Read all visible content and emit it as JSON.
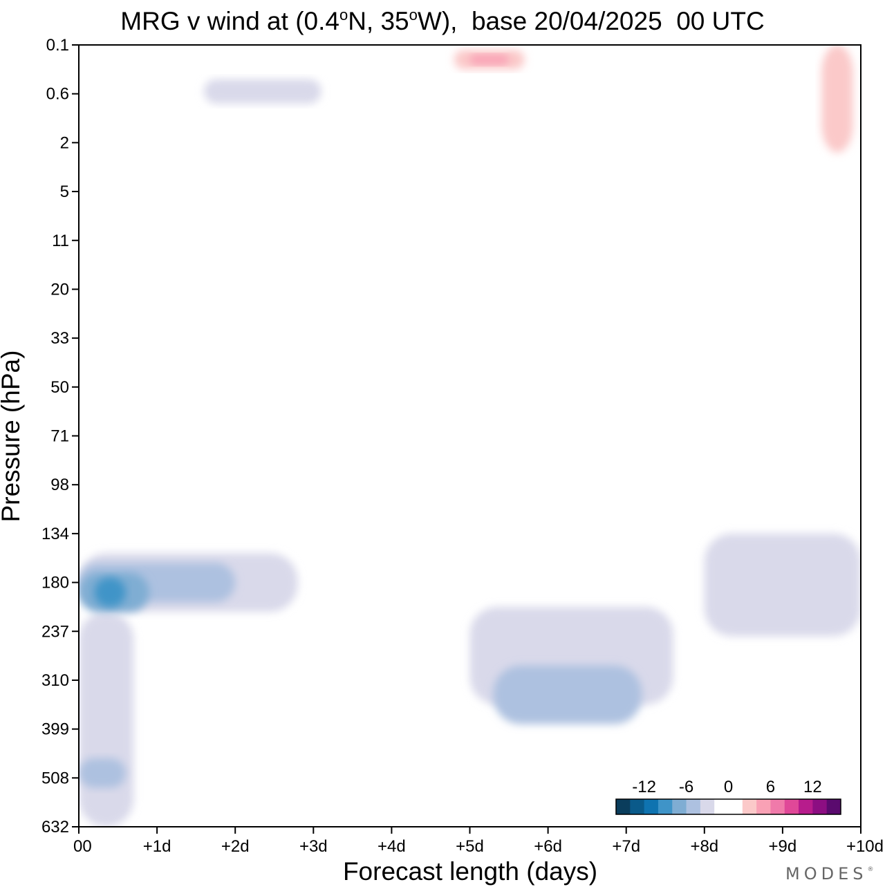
{
  "title": {
    "prefix": "MRG v wind at (0.4",
    "lat_suffix": "N, 35",
    "lon_suffix": "W),  base 20/04/2025  00 UTC",
    "degree": "o"
  },
  "logo": {
    "text": "MODES",
    "mark": "®"
  },
  "chart_data": {
    "type": "heatmap",
    "title": "MRG v wind at (0.4°N, 35°W),  base 20/04/2025  00 UTC",
    "xlabel": "Forecast length (days)",
    "ylabel": "Pressure (hPa)",
    "x_ticks": [
      {
        "value": 0,
        "label": "00"
      },
      {
        "value": 1,
        "label": "+1d"
      },
      {
        "value": 2,
        "label": "+2d"
      },
      {
        "value": 3,
        "label": "+3d"
      },
      {
        "value": 4,
        "label": "+4d"
      },
      {
        "value": 5,
        "label": "+5d"
      },
      {
        "value": 6,
        "label": "+6d"
      },
      {
        "value": 7,
        "label": "+7d"
      },
      {
        "value": 8,
        "label": "+8d"
      },
      {
        "value": 9,
        "label": "+9d"
      },
      {
        "value": 10,
        "label": "+10d"
      }
    ],
    "xlim": [
      0,
      10
    ],
    "y_ticks": [
      "0.1",
      "0.6",
      "2",
      "5",
      "11",
      "20",
      "33",
      "50",
      "71",
      "98",
      "134",
      "180",
      "237",
      "310",
      "399",
      "508",
      "632"
    ],
    "ylim": [
      "0.1",
      "632"
    ],
    "y_axis_inverted": true,
    "colorbar": {
      "tick_labels": [
        {
          "value": -12,
          "label": "-12"
        },
        {
          "value": -6,
          "label": "-6"
        },
        {
          "value": 0,
          "label": "0"
        },
        {
          "value": 6,
          "label": "6"
        },
        {
          "value": 12,
          "label": "12"
        }
      ],
      "levels": [
        -16,
        -14,
        -12,
        -10,
        -8,
        -6,
        -4,
        -2,
        2,
        4,
        6,
        8,
        10,
        12,
        14,
        16
      ],
      "colors": [
        "#0a3d5c",
        "#0a5a8a",
        "#0f73b0",
        "#3f94c8",
        "#7fadd3",
        "#adc1e0",
        "#d9d9ea",
        "#ffffff",
        "#ffffff",
        "#fbc9c9",
        "#f9a1b5",
        "#f07aaa",
        "#e04898",
        "#b71c8c",
        "#8c0e82",
        "#5a0a6e"
      ],
      "placement": "bottom-right"
    },
    "regions": [
      {
        "level": -2,
        "x": [
          0.0,
          1.2
        ],
        "y": [
          8.0,
          12.5
        ]
      },
      {
        "level": -2,
        "x": [
          0.0,
          1.5
        ],
        "y": [
          12.5,
          16.0
        ]
      },
      {
        "level": -2,
        "x": [
          1.5,
          4.2
        ],
        "y": [
          10.0,
          11.8
        ]
      },
      {
        "level": -2,
        "x": [
          1.5,
          5.8
        ],
        "y": [
          8.0,
          10.5
        ]
      },
      {
        "level": -2,
        "x": [
          4.2,
          8.2
        ],
        "y": [
          11.0,
          13.5
        ]
      },
      {
        "level": -2,
        "x": [
          7.2,
          10.0
        ],
        "y": [
          9.5,
          13.0
        ]
      },
      {
        "level": -2,
        "x": [
          9.3,
          10.0
        ],
        "y": [
          13.0,
          16.0
        ]
      },
      {
        "level": -2,
        "x": [
          0.0,
          3.1
        ],
        "y": [
          0.0,
          2.0
        ]
      },
      {
        "level": -2,
        "x": [
          3.8,
          7.2
        ],
        "y": [
          0.5,
          2.0
        ]
      },
      {
        "level": -2,
        "x": [
          8.0,
          9.2
        ],
        "y": [
          0.1,
          1.8
        ]
      },
      {
        "level": -2,
        "x": [
          3.5,
          4.6
        ],
        "y": [
          3.0,
          4.2
        ]
      },
      {
        "level": -4,
        "x": [
          0.0,
          2.8
        ],
        "y": [
          10.4,
          11.6
        ]
      },
      {
        "level": -4,
        "x": [
          0.0,
          0.7
        ],
        "y": [
          11.6,
          16.0
        ]
      },
      {
        "level": -4,
        "x": [
          5.0,
          7.6
        ],
        "y": [
          11.5,
          13.5
        ]
      },
      {
        "level": -4,
        "x": [
          8.0,
          10.0
        ],
        "y": [
          10.0,
          12.1
        ]
      },
      {
        "level": -4,
        "x": [
          1.6,
          3.1
        ],
        "y": [
          0.7,
          1.2
        ]
      },
      {
        "level": -6,
        "x": [
          0.0,
          2.0
        ],
        "y": [
          10.6,
          11.4
        ]
      },
      {
        "level": -6,
        "x": [
          5.3,
          7.2
        ],
        "y": [
          12.7,
          13.9
        ]
      },
      {
        "level": -6,
        "x": [
          0.0,
          0.6
        ],
        "y": [
          14.6,
          15.2
        ]
      },
      {
        "level": -8,
        "x": [
          0.0,
          0.9
        ],
        "y": [
          10.8,
          11.6
        ]
      },
      {
        "level": -10,
        "x": [
          0.2,
          0.6
        ],
        "y": [
          10.9,
          11.5
        ]
      },
      {
        "level": 2,
        "x": [
          5.7,
          8.4
        ],
        "y": [
          10.4,
          11.2
        ]
      },
      {
        "level": 2,
        "x": [
          4.1,
          6.3
        ],
        "y": [
          6.7,
          7.6
        ]
      },
      {
        "level": 2,
        "x": [
          5.6,
          6.7
        ],
        "y": [
          8.3,
          8.7
        ]
      },
      {
        "level": 2,
        "x": [
          3.1,
          4.7
        ],
        "y": [
          2.3,
          2.8
        ]
      },
      {
        "level": 2,
        "x": [
          4.6,
          5.8
        ],
        "y": [
          0.0,
          0.8
        ]
      },
      {
        "level": 2,
        "x": [
          9.0,
          10.0
        ],
        "y": [
          0.0,
          2.7
        ]
      },
      {
        "level": 2,
        "x": [
          0.0,
          0.9
        ],
        "y": [
          2.9,
          3.5
        ]
      },
      {
        "level": 4,
        "x": [
          4.8,
          5.7
        ],
        "y": [
          0.1,
          0.5
        ]
      },
      {
        "level": 4,
        "x": [
          9.5,
          9.9
        ],
        "y": [
          0.0,
          2.2
        ]
      },
      {
        "level": 6,
        "x": [
          5.0,
          5.5
        ],
        "y": [
          0.2,
          0.4
        ]
      }
    ]
  }
}
